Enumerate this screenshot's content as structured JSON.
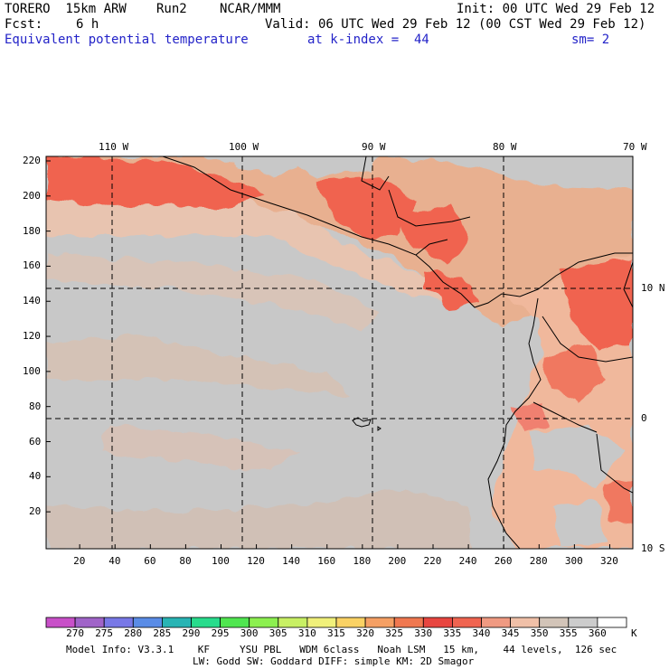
{
  "header": {
    "model": "TORERO  15km ARW",
    "run": "Run2",
    "org": "NCAR/MMM",
    "init": "Init: 00 UTC Wed 29 Feb 12",
    "fcst_label": "Fcst:",
    "fcst_value": "6 h",
    "valid": "Valid: 06 UTC Wed 29 Feb 12 (00 CST Wed 29 Feb 12)",
    "field": "Equivalent potential temperature",
    "level": "at k-index =  44",
    "smoothing": "sm= 2"
  },
  "map": {
    "lon_labels": [
      "110 W",
      "100 W",
      "90 W",
      "80 W",
      "70 W"
    ],
    "lat_labels": [
      "10 N",
      "0",
      "10 S"
    ],
    "y_ticks": [
      "20",
      "40",
      "60",
      "80",
      "100",
      "120",
      "140",
      "160",
      "180",
      "200",
      "220"
    ],
    "x_ticks": [
      "20",
      "40",
      "60",
      "80",
      "100",
      "120",
      "140",
      "160",
      "180",
      "200",
      "220",
      "240",
      "260",
      "280",
      "300",
      "320"
    ],
    "background_color": "#c8c8c8",
    "land_color": "#e8b090",
    "warm_color": "#f06450"
  },
  "colorbar": {
    "labels": [
      "270",
      "275",
      "280",
      "285",
      "290",
      "295",
      "300",
      "305",
      "310",
      "315",
      "320",
      "325",
      "330",
      "335",
      "340",
      "345",
      "350",
      "355",
      "360"
    ],
    "unit": "K",
    "colors": [
      "#c850c8",
      "#a064c8",
      "#7878e6",
      "#5a8ce6",
      "#28b4b4",
      "#28dc8c",
      "#50e650",
      "#8cf050",
      "#c8f064",
      "#f0f07a",
      "#fad264",
      "#f5a064",
      "#f07850",
      "#e84640",
      "#f06450",
      "#f09a82",
      "#f0c0a8",
      "#d2c4b8",
      "#cccccc",
      "#ffffff"
    ]
  },
  "footer": {
    "line1": "Model Info: V3.3.1    KF     YSU PBL   WDM 6class   Noah LSM   15 km,    44 levels,  126 sec",
    "line2": "LW: Godd SW: Goddard DIFF: simple KM: 2D Smagor"
  }
}
